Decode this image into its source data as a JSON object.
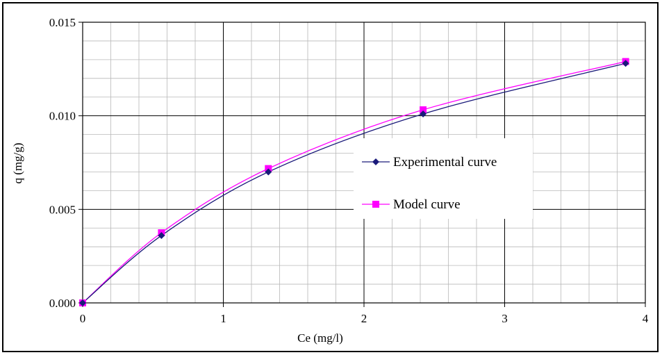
{
  "chart_data": {
    "type": "line",
    "title": "",
    "xlabel": "Ce (mg/l)",
    "ylabel": "q (mg/g)",
    "xlim": [
      0,
      4
    ],
    "ylim": [
      0,
      0.015
    ],
    "x_ticks": [
      "0",
      "1",
      "2",
      "3",
      "4"
    ],
    "y_ticks": [
      "0.000",
      "0.005",
      "0.010",
      "0.015"
    ],
    "grid": true,
    "minor_grid": true,
    "legend_position": "center-right",
    "smooth_lines": true,
    "series": [
      {
        "name": "Experimental curve",
        "marker": "diamond",
        "color": "#1a1a7a",
        "points": [
          {
            "x": 0,
            "y": 0
          },
          {
            "x": 0.56,
            "y": 0.0036
          },
          {
            "x": 1.32,
            "y": 0.007
          },
          {
            "x": 2.42,
            "y": 0.0101
          },
          {
            "x": 3.86,
            "y": 0.0128
          }
        ]
      },
      {
        "name": "Model curve",
        "marker": "square",
        "color": "#ff00ff",
        "points": [
          {
            "x": 0,
            "y": 0
          },
          {
            "x": 0.56,
            "y": 0.00375
          },
          {
            "x": 1.32,
            "y": 0.00718
          },
          {
            "x": 2.42,
            "y": 0.01032
          },
          {
            "x": 3.86,
            "y": 0.0129
          }
        ]
      }
    ]
  }
}
